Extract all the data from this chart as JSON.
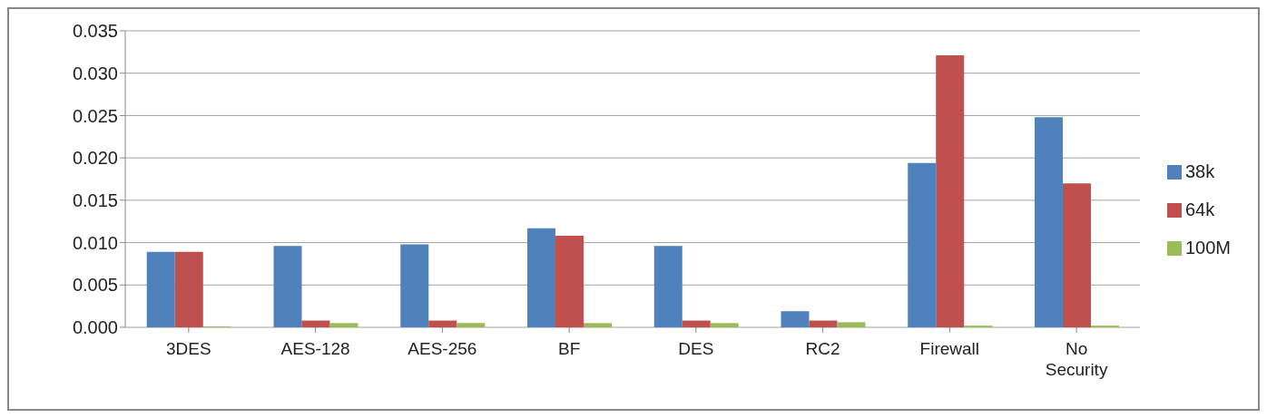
{
  "chart_data": {
    "type": "bar",
    "categories": [
      "3DES",
      "AES-128",
      "AES-256",
      "BF",
      "DES",
      "RC2",
      "Firewall",
      "No Security"
    ],
    "series": [
      {
        "name": "38k",
        "color": "#4f81bd",
        "values": [
          0.0089,
          0.0096,
          0.0098,
          0.0117,
          0.0096,
          0.0019,
          0.0194,
          0.0248
        ]
      },
      {
        "name": "64k",
        "color": "#c0504d",
        "values": [
          0.0089,
          0.0008,
          0.0008,
          0.0108,
          0.0008,
          0.0008,
          0.0321,
          0.017
        ]
      },
      {
        "name": "100M",
        "color": "#9bbb59",
        "values": [
          0.0001,
          0.0005,
          0.0005,
          0.0005,
          0.0005,
          0.0006,
          0.0002,
          0.0002
        ]
      }
    ],
    "ylim": [
      0,
      0.035
    ],
    "yticks": [
      {
        "value": 0,
        "label": "0.000"
      },
      {
        "value": 0.005,
        "label": "0.005"
      },
      {
        "value": 0.01,
        "label": "0.010"
      },
      {
        "value": 0.015,
        "label": "0.015"
      },
      {
        "value": 0.02,
        "label": "0.020"
      },
      {
        "value": 0.025,
        "label": "0.025"
      },
      {
        "value": 0.03,
        "label": "0.030"
      },
      {
        "value": 0.035,
        "label": "0.035"
      }
    ],
    "grid": "y",
    "legend": "right"
  }
}
